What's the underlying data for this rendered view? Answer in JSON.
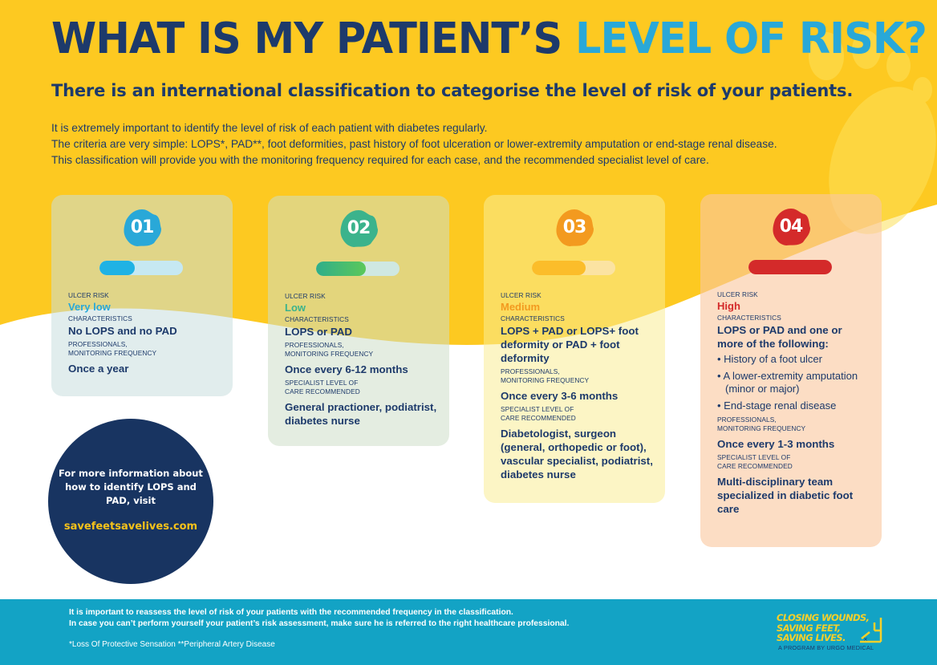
{
  "header": {
    "title_main": "WHAT IS MY PATIENT’S",
    "title_accent": "LEVEL OF RISK?",
    "subtitle": "There is an international classification to categorise the level of risk of your patients.",
    "intro": [
      "It is extremely important to identify the level of risk of each patient with diabetes regularly.",
      "The criteria are very simple: LOPS*, PAD**, foot deformities, past history of foot ulceration or lower-extremity amputation or end-stage renal disease.",
      "This classification will provide you with the monitoring frequency required for each case, and the recommended specialist level of care."
    ]
  },
  "cards": [
    {
      "number": "01",
      "ulcer_risk_label": "ULCER RISK",
      "level": "Very low",
      "level_color": "#29a8d8",
      "risk_fill": 0.42,
      "characteristics_label": "CHARACTERISTICS",
      "characteristics": "No LOPS and no PAD",
      "frequency_label_1": "PROFESSIONALS,",
      "frequency_label_2": "MONITORING FREQUENCY",
      "frequency": "Once a year"
    },
    {
      "number": "02",
      "ulcer_risk_label": "ULCER RISK",
      "level": "Low",
      "level_color": "#3bb38c",
      "risk_fill": 0.6,
      "characteristics_label": "CHARACTERISTICS",
      "characteristics": "LOPS or PAD",
      "frequency_label_1": "PROFESSIONALS,",
      "frequency_label_2": "MONITORING FREQUENCY",
      "frequency": "Once every 6-12 months",
      "specialist_label_1": "Specialist level of",
      "specialist_label_2": "care recommended",
      "specialist": "General practioner, podiatrist, diabetes nurse"
    },
    {
      "number": "03",
      "ulcer_risk_label": "ULCER RISK",
      "level": "Medium",
      "level_color": "#f39a1f",
      "risk_fill": 0.64,
      "characteristics_label": "CHARACTERISTICS",
      "characteristics": "LOPS + PAD or LOPS+ foot deformity or PAD + foot deformity",
      "frequency_label_1": "PROFESSIONALS,",
      "frequency_label_2": "MONITORING FREQUENCY",
      "frequency": "Once every 3-6 months",
      "specialist_label_1": "Specialist level of",
      "specialist_label_2": "care recommended",
      "specialist": "Diabetologist, surgeon (general, orthopedic or foot), vascular specialist, podiatrist, diabetes nurse"
    },
    {
      "number": "04",
      "ulcer_risk_label": "ULCER RISK",
      "level": "High",
      "level_color": "#d42a2a",
      "risk_fill": 1.0,
      "characteristics_label": "CHARACTERISTICS",
      "characteristics": "LOPS or PAD and one or more of the following:",
      "bullets": [
        "• History of a foot ulcer",
        "• A lower-extremity amputation (minor or major)",
        "• End-stage renal disease"
      ],
      "frequency_label_1": "PROFESSIONALS,",
      "frequency_label_2": "MONITORING FREQUENCY",
      "frequency": "Once every 1-3 months",
      "specialist_label_1": "Specialist level of",
      "specialist_label_2": "care recommended",
      "specialist": "Multi-disciplinary team specialized in diabetic foot care"
    }
  ],
  "info_circle": {
    "text": "For more information about how to identify LOPS and PAD, visit",
    "link": "savefeetsavelives.com"
  },
  "footer": {
    "note_1": "It is important to reassess the level of risk of your patients with the recommended frequency in the classification.",
    "note_2": "In case you can’t perform yourself your patient’s risk assessment, make sure he is referred to the right healthcare professional.",
    "abbreviations": "*Loss Of Protective Sensation **Peripheral Artery Disease",
    "logo_line_1": "CLOSING WOUNDS,",
    "logo_line_2": "SAVING FEET,",
    "logo_line_3": "SAVING LIVES.",
    "logo_tagline": "A PROGRAM BY URGO MEDICAL"
  },
  "colors": {
    "background_yellow": "#fdc921",
    "navy": "#1d3a6b",
    "accent_blue": "#29a8d8",
    "footer_teal": "#13a3c5",
    "link_yellow": "#f6c21a"
  }
}
